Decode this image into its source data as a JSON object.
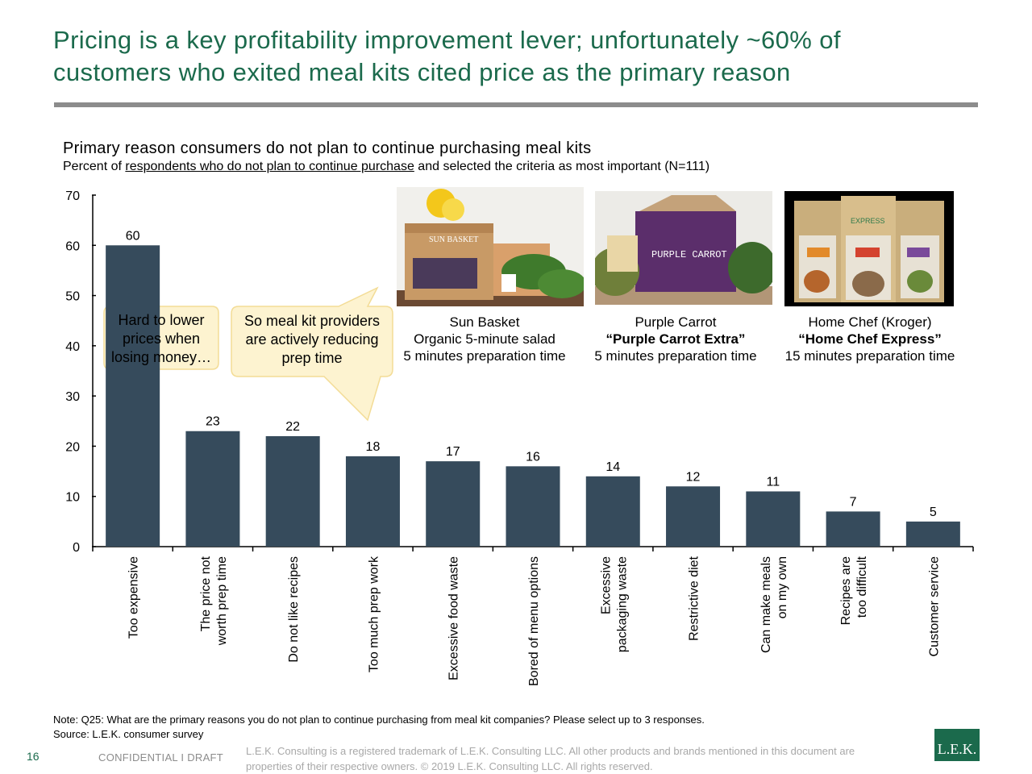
{
  "slide": {
    "title_line1": "Pricing is a key profitability improvement lever; unfortunately ~60% of",
    "title_line2": "customers who exited meal kits cited price as the primary reason",
    "subtitle": "Primary reason consumers do not plan to continue purchasing meal kits",
    "subtitle2_pre": "Percent of ",
    "subtitle2_underlined": "respondents who do not plan to continue purchase",
    "subtitle2_post": " and selected the criteria as most important (N=111)"
  },
  "callouts": {
    "left_line1": "Hard to lower",
    "left_line2": "prices when",
    "left_line3": "losing money…",
    "right_line1": "So meal kit providers",
    "right_line2": "are actively reducing",
    "right_line3": "prep time"
  },
  "products": [
    {
      "line1": "Sun Basket",
      "line2": "Organic 5-minute salad",
      "line3": "5 minutes preparation time",
      "box_text": "SUN BASKET"
    },
    {
      "line1": "Purple Carrot",
      "line2": "“Purple Carrot Extra”",
      "line3": "5 minutes preparation time",
      "box_text": "PURPLE CARROT"
    },
    {
      "line1": "Home Chef (Kroger)",
      "line2": "“Home Chef Express”",
      "line3": "15 minutes preparation time",
      "box_text": "EXPRESS"
    }
  ],
  "chart_data": {
    "type": "bar",
    "categories": [
      [
        "Too expensive"
      ],
      [
        "The price not",
        "worth prep time"
      ],
      [
        "Do not like recipes"
      ],
      [
        "Too much prep work"
      ],
      [
        "Excessive food waste"
      ],
      [
        "Bored of menu options"
      ],
      [
        "Excessive",
        "packaging waste"
      ],
      [
        "Restrictive diet"
      ],
      [
        "Can make meals",
        "on my own"
      ],
      [
        "Recipes are",
        "too difficult"
      ],
      [
        "Customer service"
      ]
    ],
    "values": [
      60,
      23,
      22,
      18,
      17,
      16,
      14,
      12,
      11,
      7,
      5
    ],
    "ylim": [
      0,
      70
    ],
    "yticks": [
      0,
      10,
      20,
      30,
      40,
      50,
      60,
      70
    ],
    "bar_color": "#364b5c",
    "grid": false,
    "legend": "none"
  },
  "notes": {
    "note": "Note:    Q25: What are the primary reasons you do not plan to continue purchasing from meal kit companies? Please select up to 3 responses.",
    "source": "Source: L.E.K. consumer survey"
  },
  "footer": {
    "page_number": "16",
    "confidential": "CONFIDENTIAL  I  DRAFT",
    "legal_line1": "L.E.K. Consulting is a registered trademark of L.E.K. Consulting LLC.  All other products and brands mentioned in this document are",
    "legal_line2": "properties of their respective owners. © 2019 L.E.K. Consulting LLC.  All rights reserved.",
    "logo_text": "L.E.K."
  },
  "colors": {
    "title_green": "#1b6a4c",
    "callout_fill": "#fdf3d0",
    "callout_stroke": "#f3dc96"
  }
}
